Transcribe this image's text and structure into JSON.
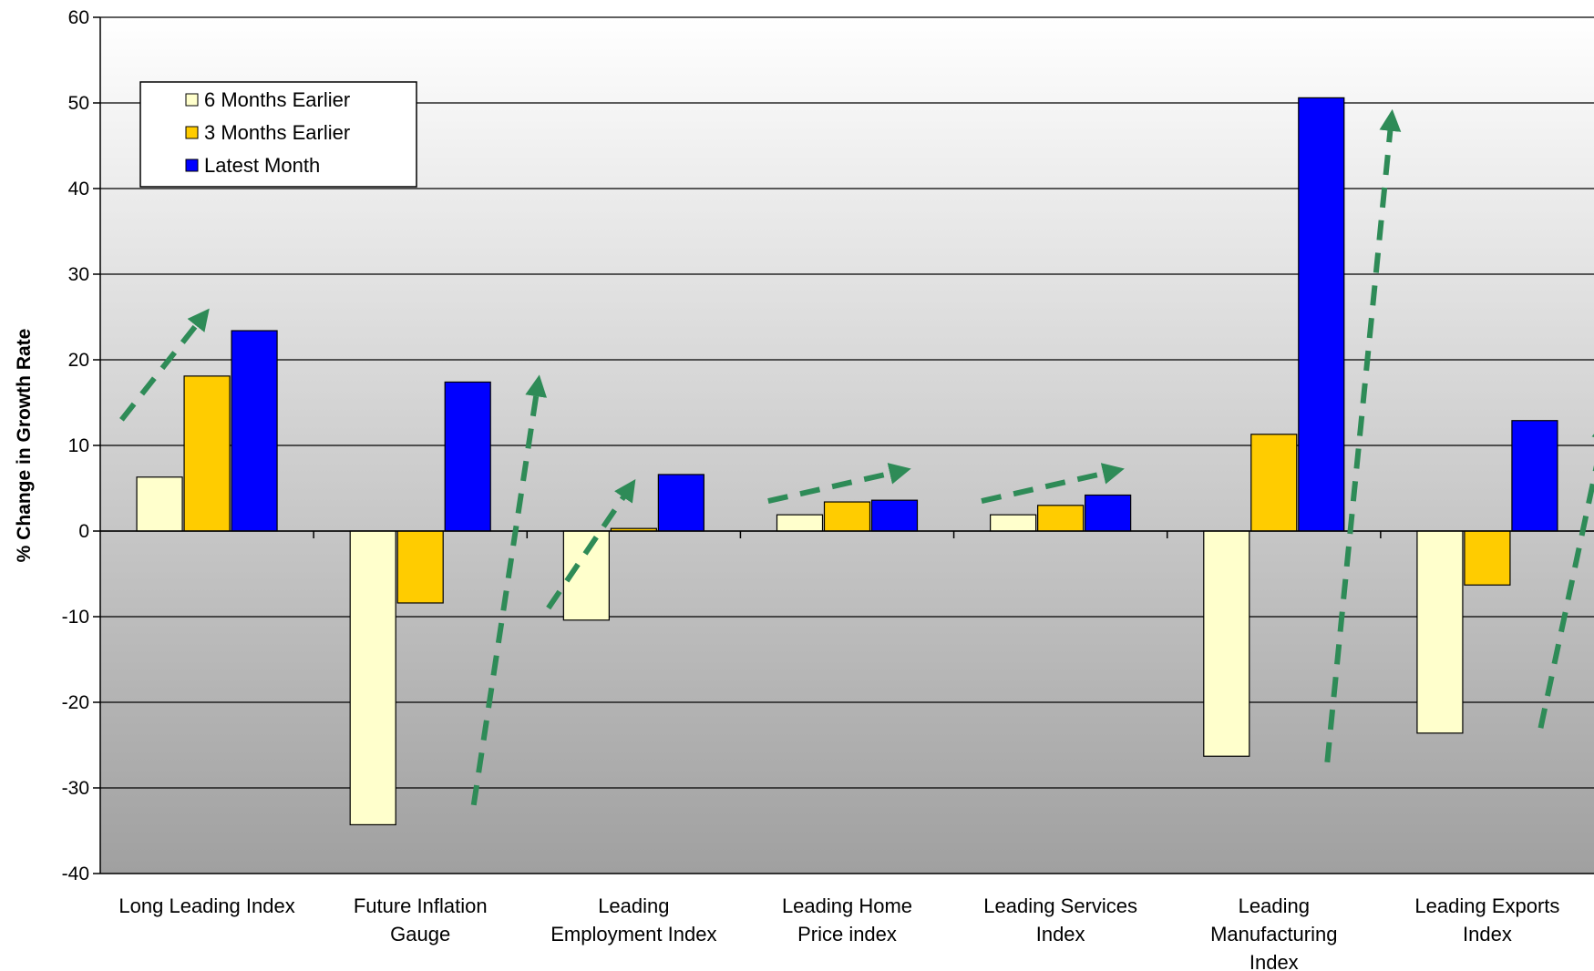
{
  "chart_data": {
    "type": "bar",
    "title": "",
    "xlabel": "",
    "ylabel": "% Change in Growth Rate",
    "ylim": [
      -40,
      60
    ],
    "yticks": [
      -40,
      -30,
      -20,
      -10,
      0,
      10,
      20,
      30,
      40,
      50,
      60
    ],
    "grid": true,
    "legend_position": "top-left",
    "categories": [
      "Long Leading Index",
      "Future Inflation Gauge",
      "Leading Employment Index",
      "Leading Home Price index",
      "Leading Services Index",
      "Leading Manufacturing Index",
      "Leading Exports Index"
    ],
    "category_lines": [
      [
        "Long Leading Index"
      ],
      [
        "Future Inflation",
        "Gauge"
      ],
      [
        "Leading",
        "Employment Index"
      ],
      [
        "Leading Home",
        "Price index"
      ],
      [
        "Leading Services",
        "Index"
      ],
      [
        "Leading",
        "Manufacturing",
        "Index"
      ],
      [
        "Leading Exports",
        "Index"
      ]
    ],
    "series": [
      {
        "name": "6 Months Earlier",
        "color": "#ffffcc",
        "values": [
          6.3,
          -34.3,
          -10.4,
          1.9,
          1.9,
          -26.3,
          -23.6
        ]
      },
      {
        "name": "3 Months Earlier",
        "color": "#ffcc00",
        "values": [
          18.1,
          -8.4,
          0.3,
          3.4,
          3.0,
          11.3,
          -6.3
        ]
      },
      {
        "name": "Latest Month",
        "color": "#0000ff",
        "values": [
          23.4,
          17.4,
          6.6,
          3.6,
          4.2,
          50.6,
          12.9
        ]
      }
    ],
    "annotations": {
      "type": "dashed-trend-arrows",
      "color": "#2e8b57",
      "arrows": [
        {
          "category": "Long Leading Index",
          "from": 13,
          "to": 25
        },
        {
          "category": "Future Inflation Gauge",
          "from": -32,
          "to": 17
        },
        {
          "category": "Leading Employment Index",
          "from": -9,
          "to": 5
        },
        {
          "category": "Leading Home Price index",
          "from": 3.5,
          "to": 7
        },
        {
          "category": "Leading Services Index",
          "from": 3.5,
          "to": 7
        },
        {
          "category": "Leading Manufacturing Index",
          "from": -27,
          "to": 48
        },
        {
          "category": "Leading Exports Index",
          "from": -23,
          "to": 12
        }
      ]
    }
  }
}
